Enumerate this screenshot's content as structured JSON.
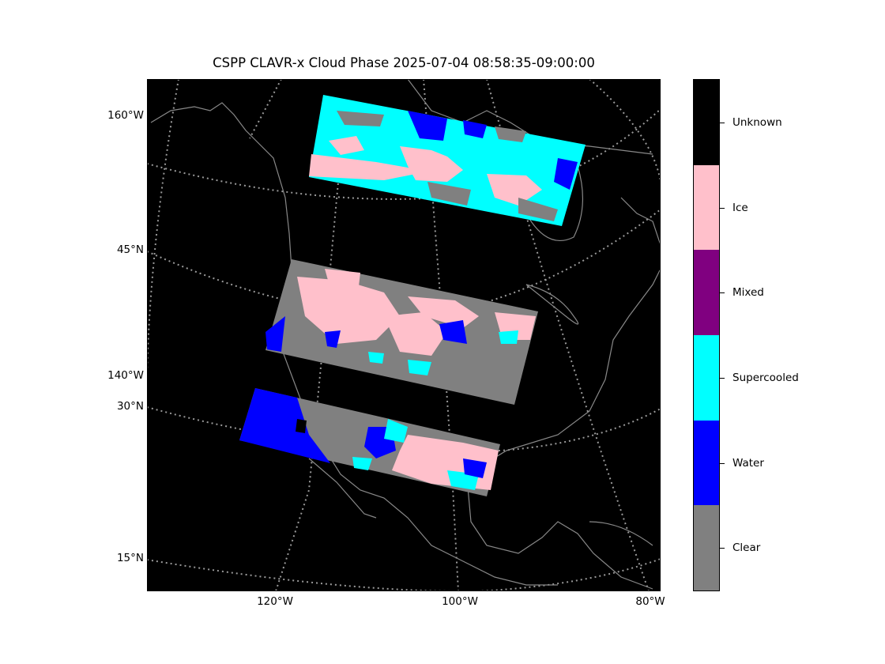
{
  "title": "CSPP CLAVR-x Cloud Phase 2025-07-04 08:58:35-09:00:00",
  "y_labels": [
    "160°W",
    "45°N",
    "140°W",
    "30°N",
    "15°N"
  ],
  "x_labels": [
    "120°W",
    "100°W",
    "80°W"
  ],
  "colorbar": {
    "categories": [
      "Clear",
      "Water",
      "Supercooled",
      "Mixed",
      "Ice",
      "Unknown"
    ],
    "colors": [
      "#808080",
      "#0000ff",
      "#00ffff",
      "#800080",
      "#ffc0cb",
      "#000000"
    ]
  }
}
